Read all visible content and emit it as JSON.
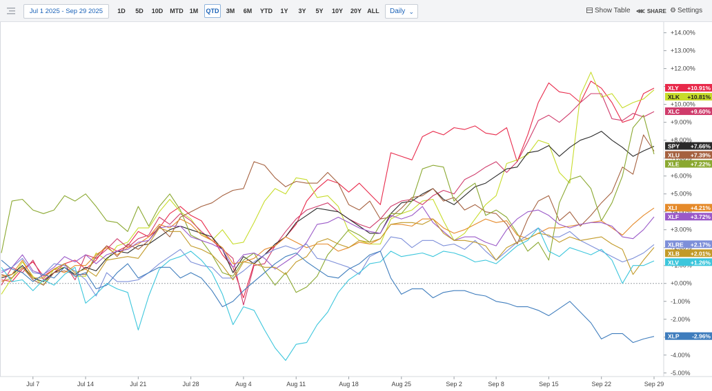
{
  "toolbar": {
    "date_range": "Jul 1 2025 - Sep 29 2025",
    "ranges": [
      "1D",
      "5D",
      "10D",
      "MTD",
      "1M",
      "QTD",
      "3M",
      "6M",
      "YTD",
      "1Y",
      "3Y",
      "5Y",
      "10Y",
      "20Y",
      "ALL"
    ],
    "active_range": "QTD",
    "interval": "Daily",
    "show_table": "Show Table",
    "share": "SHARE",
    "settings": "Settings"
  },
  "chart_data": {
    "type": "line",
    "x": [
      "2025-07-01",
      "2025-07-02",
      "2025-07-03",
      "2025-07-07",
      "2025-07-08",
      "2025-07-09",
      "2025-07-10",
      "2025-07-11",
      "2025-07-14",
      "2025-07-15",
      "2025-07-16",
      "2025-07-17",
      "2025-07-18",
      "2025-07-21",
      "2025-07-22",
      "2025-07-23",
      "2025-07-24",
      "2025-07-25",
      "2025-07-28",
      "2025-07-29",
      "2025-07-30",
      "2025-07-31",
      "2025-08-01",
      "2025-08-04",
      "2025-08-05",
      "2025-08-06",
      "2025-08-07",
      "2025-08-08",
      "2025-08-11",
      "2025-08-12",
      "2025-08-13",
      "2025-08-14",
      "2025-08-15",
      "2025-08-18",
      "2025-08-19",
      "2025-08-20",
      "2025-08-21",
      "2025-08-22",
      "2025-08-25",
      "2025-08-26",
      "2025-08-27",
      "2025-08-28",
      "2025-08-29",
      "2025-09-02",
      "2025-09-03",
      "2025-09-04",
      "2025-09-05",
      "2025-09-08",
      "2025-09-09",
      "2025-09-10",
      "2025-09-11",
      "2025-09-12",
      "2025-09-15",
      "2025-09-16",
      "2025-09-17",
      "2025-09-18",
      "2025-09-19",
      "2025-09-22",
      "2025-09-23",
      "2025-09-24",
      "2025-09-25",
      "2025-09-26",
      "2025-09-29"
    ],
    "x_ticks": [
      {
        "date": "2025-07-07",
        "label": "Jul 7"
      },
      {
        "date": "2025-07-14",
        "label": "Jul 14"
      },
      {
        "date": "2025-07-21",
        "label": "Jul 21"
      },
      {
        "date": "2025-07-28",
        "label": "Jul 28"
      },
      {
        "date": "2025-08-04",
        "label": "Aug 4"
      },
      {
        "date": "2025-08-11",
        "label": "Aug 11"
      },
      {
        "date": "2025-08-18",
        "label": "Aug 18"
      },
      {
        "date": "2025-08-25",
        "label": "Aug 25"
      },
      {
        "date": "2025-09-02",
        "label": "Sep 2"
      },
      {
        "date": "2025-09-08",
        "label": "Sep 8"
      },
      {
        "date": "2025-09-15",
        "label": "Sep 15"
      },
      {
        "date": "2025-09-22",
        "label": "Sep 22"
      },
      {
        "date": "2025-09-29",
        "label": "Sep 29"
      }
    ],
    "y_ticks": [
      14,
      13,
      12,
      11,
      10,
      9,
      8,
      7,
      6,
      5,
      4,
      3,
      2,
      1,
      0,
      -1,
      -2,
      -3,
      -4,
      -5
    ],
    "y_tick_labels": [
      "+14.00%",
      "+13.00%",
      "+12.00%",
      "+11.00%",
      "+10.00%",
      "+9.00%",
      "+8.00%",
      "+7.00%",
      "+6.00%",
      "+5.00%",
      "+4.00%",
      "+3.00%",
      "+2.00%",
      "+1.00%",
      "+0.00%",
      "-1.00%",
      "-2.00%",
      "-3.00%",
      "-4.00%",
      "-5.00%"
    ],
    "ylim": [
      -5.2,
      14.6
    ],
    "zero_line": true,
    "grid": false,
    "series": [
      {
        "name": "XLY",
        "color": "#e8294a",
        "end_label": "+10.91%",
        "values": [
          0.2,
          0.1,
          0.8,
          1.2,
          0.4,
          0.8,
          1.1,
          1.3,
          0.8,
          1.3,
          2.1,
          1.8,
          2.1,
          2.9,
          2.6,
          3.1,
          3.9,
          4.3,
          3.8,
          3.5,
          2.6,
          1.6,
          0.9,
          -0.8,
          1.1,
          1.6,
          2.1,
          2.6,
          3.3,
          4.6,
          5.3,
          5.8,
          5.6,
          5.1,
          5.6,
          5.0,
          4.4,
          7.3,
          7.1,
          6.9,
          8.2,
          8.5,
          8.3,
          8.7,
          8.6,
          8.8,
          8.4,
          8.3,
          8.7,
          6.8,
          8.3,
          10.1,
          11.2,
          10.7,
          10.6,
          10.1,
          11.3,
          10.9,
          10.1,
          9.0,
          9.2,
          10.6,
          10.91
        ]
      },
      {
        "name": "XLK",
        "color": "#c7dc2b",
        "end_label": "+10.81%",
        "values": [
          -0.6,
          0.3,
          1.2,
          0.4,
          -0.1,
          0.8,
          0.9,
          0.4,
          0.4,
          1.7,
          1.3,
          2.1,
          2.3,
          3.1,
          3.1,
          4.0,
          4.7,
          4.0,
          3.6,
          2.8,
          2.4,
          3.0,
          2.2,
          2.3,
          3.4,
          4.6,
          5.3,
          5.0,
          5.9,
          5.8,
          4.8,
          4.9,
          4.3,
          2.9,
          2.4,
          2.2,
          2.2,
          3.6,
          3.9,
          4.1,
          4.6,
          4.7,
          3.5,
          2.4,
          2.8,
          3.6,
          4.4,
          4.9,
          6.7,
          6.9,
          7.2,
          8.0,
          7.8,
          6.2,
          5.6,
          10.5,
          11.8,
          10.4,
          10.6,
          9.8,
          10.1,
          10.3,
          10.81
        ]
      },
      {
        "name": "XLC",
        "color": "#cf3b6b",
        "end_label": "+9.60%",
        "values": [
          -0.1,
          0.9,
          0.6,
          1.3,
          0.2,
          0.6,
          1.1,
          0.2,
          1.6,
          1.4,
          1.9,
          2.5,
          2.0,
          2.5,
          2.7,
          3.7,
          3.3,
          3.9,
          3.5,
          2.9,
          2.4,
          1.9,
          1.4,
          -1.2,
          1.0,
          1.1,
          2.1,
          2.9,
          3.6,
          4.1,
          4.3,
          4.5,
          4.0,
          3.6,
          3.3,
          3.1,
          3.6,
          4.3,
          4.6,
          4.7,
          4.4,
          4.9,
          5.2,
          5.0,
          5.8,
          6.1,
          6.5,
          6.8,
          6.2,
          6.8,
          7.9,
          9.1,
          9.4,
          9.0,
          9.5,
          10.1,
          10.6,
          10.6,
          9.2,
          9.1,
          9.5,
          9.3,
          9.6
        ]
      },
      {
        "name": "SPY",
        "color": "#2a2a2a",
        "end_label": "+7.66%",
        "values": [
          0.3,
          0.5,
          1.0,
          0.3,
          0.1,
          0.6,
          0.9,
          0.5,
          0.9,
          0.7,
          1.4,
          1.8,
          1.7,
          2.1,
          2.2,
          2.6,
          3.0,
          3.2,
          3.0,
          2.8,
          2.6,
          1.9,
          0.6,
          1.5,
          1.1,
          1.6,
          2.2,
          2.6,
          3.4,
          3.8,
          4.2,
          4.1,
          4.0,
          3.6,
          3.2,
          2.8,
          2.8,
          3.9,
          4.5,
          4.6,
          5.0,
          5.3,
          4.7,
          4.4,
          4.9,
          5.4,
          5.6,
          6.0,
          6.4,
          6.5,
          7.3,
          7.4,
          7.7,
          7.1,
          7.6,
          8.0,
          8.2,
          8.5,
          8.0,
          7.6,
          7.1,
          7.4,
          7.66
        ]
      },
      {
        "name": "XLU",
        "color": "#a5613f",
        "end_label": "+7.39%",
        "values": [
          0.5,
          0.3,
          0.9,
          0.2,
          -0.1,
          0.6,
          0.7,
          0.5,
          0.5,
          1.5,
          2.1,
          1.5,
          2.2,
          1.9,
          2.4,
          3.2,
          2.6,
          3.7,
          4.0,
          4.3,
          4.5,
          4.9,
          5.2,
          5.3,
          6.8,
          6.6,
          5.9,
          5.4,
          5.7,
          5.6,
          5.6,
          6.2,
          5.6,
          4.4,
          4.1,
          4.6,
          3.6,
          3.7,
          4.2,
          4.8,
          4.9,
          5.3,
          4.6,
          4.8,
          4.1,
          4.4,
          4.0,
          3.9,
          3.3,
          2.2,
          3.6,
          4.6,
          4.9,
          3.5,
          4.0,
          3.2,
          3.8,
          4.5,
          5.1,
          6.5,
          6.1,
          8.3,
          7.39
        ]
      },
      {
        "name": "XLE",
        "color": "#8aa830",
        "end_label": "+7.22%",
        "values": [
          1.7,
          4.6,
          4.7,
          4.1,
          3.9,
          4.1,
          4.9,
          4.6,
          5.0,
          4.3,
          3.5,
          3.4,
          2.9,
          4.3,
          3.2,
          4.3,
          5.0,
          4.1,
          2.7,
          2.4,
          1.6,
          0.6,
          0.4,
          1.3,
          1.7,
          0.7,
          -0.1,
          0.6,
          -0.5,
          -0.2,
          0.4,
          1.6,
          2.3,
          3.0,
          2.7,
          2.3,
          3.3,
          3.9,
          3.9,
          4.6,
          6.4,
          6.6,
          6.5,
          4.6,
          5.2,
          5.6,
          3.8,
          4.1,
          3.7,
          2.8,
          1.8,
          2.3,
          1.3,
          4.5,
          5.8,
          6.0,
          5.3,
          3.5,
          4.5,
          6.0,
          8.7,
          9.4,
          7.22
        ]
      },
      {
        "name": "XLI",
        "color": "#e58a2a",
        "end_label": "+4.21%",
        "values": [
          0.4,
          0.5,
          1.3,
          0.3,
          0.3,
          0.8,
          0.6,
          1.0,
          1.0,
          1.6,
          2.0,
          1.6,
          2.0,
          2.2,
          2.6,
          3.3,
          3.1,
          3.6,
          3.3,
          2.7,
          2.4,
          2.0,
          1.1,
          1.2,
          1.4,
          1.9,
          2.1,
          2.6,
          2.3,
          2.0,
          2.2,
          2.2,
          1.8,
          2.0,
          2.3,
          2.2,
          2.5,
          3.3,
          3.3,
          3.2,
          3.6,
          3.6,
          3.1,
          2.8,
          3.0,
          3.3,
          3.6,
          3.4,
          3.5,
          2.7,
          2.5,
          2.8,
          3.1,
          3.1,
          3.2,
          3.3,
          3.4,
          3.5,
          3.1,
          2.7,
          3.3,
          3.8,
          4.21
        ]
      },
      {
        "name": "XLF",
        "color": "#9a59c8",
        "end_label": "+3.72%",
        "values": [
          0.6,
          0.9,
          1.6,
          0.7,
          0.5,
          0.9,
          1.5,
          1.2,
          1.6,
          1.1,
          1.6,
          1.8,
          1.9,
          2.3,
          2.4,
          3.1,
          3.2,
          3.2,
          2.6,
          2.4,
          2.2,
          1.9,
          0.9,
          1.6,
          1.7,
          1.4,
          0.8,
          1.2,
          1.6,
          2.3,
          3.3,
          3.4,
          3.7,
          3.4,
          3.1,
          2.9,
          2.8,
          3.8,
          3.6,
          3.8,
          4.3,
          3.4,
          2.9,
          2.4,
          2.6,
          2.6,
          2.3,
          2.1,
          3.0,
          3.6,
          4.0,
          4.1,
          3.8,
          3.3,
          3.1,
          3.3,
          3.4,
          3.4,
          3.2,
          2.6,
          2.5,
          3.0,
          3.72
        ]
      },
      {
        "name": "XLRE",
        "color": "#7d8fd9",
        "end_label": "+2.17%",
        "values": [
          0.7,
          0.9,
          1.4,
          0.6,
          0.5,
          1.1,
          1.0,
          0.7,
          0.2,
          -0.7,
          0.6,
          0.1,
          0.1,
          0.2,
          0.6,
          1.1,
          1.5,
          1.9,
          1.2,
          1.0,
          0.9,
          0.3,
          0.3,
          0.7,
          1.2,
          1.6,
          1.9,
          2.1,
          1.9,
          2.2,
          1.4,
          1.3,
          1.1,
          0.9,
          0.5,
          1.5,
          1.8,
          2.6,
          2.5,
          2.0,
          2.4,
          2.4,
          2.1,
          2.2,
          1.9,
          2.4,
          1.8,
          1.3,
          1.8,
          2.3,
          2.7,
          3.1,
          2.6,
          2.6,
          2.9,
          2.4,
          2.1,
          1.8,
          1.5,
          1.2,
          1.4,
          1.7,
          2.17
        ]
      },
      {
        "name": "XLB",
        "color": "#c29a28",
        "end_label": "+2.01%",
        "values": [
          0.1,
          0.3,
          0.9,
          0.3,
          0.3,
          0.8,
          1.1,
          0.6,
          0.8,
          0.4,
          1.3,
          1.4,
          1.5,
          1.4,
          2.2,
          3.1,
          2.9,
          2.9,
          2.1,
          1.9,
          1.6,
          1.0,
          0.2,
          1.2,
          1.1,
          0.9,
          0.9,
          0.5,
          1.2,
          1.5,
          2.3,
          2.5,
          2.2,
          2.0,
          2.4,
          2.3,
          2.5,
          3.3,
          3.4,
          3.4,
          3.3,
          3.6,
          2.8,
          2.4,
          2.4,
          2.3,
          2.1,
          1.3,
          2.0,
          2.3,
          2.5,
          2.8,
          2.7,
          2.3,
          2.6,
          2.4,
          2.5,
          2.6,
          2.2,
          1.9,
          0.5,
          1.3,
          2.01
        ]
      },
      {
        "name": "XLV",
        "color": "#3cc6dc",
        "end_label": "+1.26%",
        "values": [
          0.9,
          0.1,
          0.2,
          -0.4,
          0.2,
          -0.1,
          0.5,
          0.9,
          -1.1,
          -0.6,
          0.0,
          -0.3,
          -0.5,
          -2.6,
          -0.7,
          0.8,
          1.3,
          1.5,
          1.8,
          1.3,
          0.6,
          -0.6,
          -2.3,
          -1.3,
          -1.5,
          -2.6,
          -3.6,
          -4.3,
          -3.4,
          -3.3,
          -2.3,
          -1.6,
          -0.5,
          0.2,
          0.6,
          1.1,
          1.2,
          1.8,
          1.5,
          1.6,
          1.7,
          1.5,
          1.8,
          1.7,
          1.5,
          1.2,
          1.3,
          1.1,
          1.6,
          2.1,
          2.4,
          3.1,
          1.8,
          1.5,
          2.0,
          1.8,
          1.6,
          1.9,
          1.3,
          0.0,
          1.0,
          1.0,
          1.26
        ]
      },
      {
        "name": "XLP",
        "color": "#3f7dbd",
        "end_label": "-2.96%",
        "values": [
          1.3,
          0.8,
          0.6,
          0.1,
          0.5,
          0.3,
          0.9,
          0.4,
          0.6,
          -0.3,
          -0.1,
          0.6,
          1.1,
          0.3,
          0.6,
          0.9,
          0.9,
          0.3,
          0.6,
          0.3,
          -0.4,
          -1.3,
          -1.0,
          -0.4,
          0.1,
          0.6,
          1.1,
          1.5,
          1.7,
          1.2,
          0.8,
          0.4,
          0.3,
          0.8,
          1.1,
          1.6,
          1.8,
          0.3,
          -0.6,
          -0.3,
          -0.3,
          -0.8,
          -0.5,
          -0.4,
          -0.4,
          -0.6,
          -0.7,
          -1.0,
          -1.1,
          -1.3,
          -1.3,
          -1.5,
          -1.8,
          -1.4,
          -1.0,
          -1.6,
          -2.2,
          -3.1,
          -2.8,
          -2.8,
          -3.3,
          -3.1,
          -2.96
        ]
      }
    ]
  }
}
